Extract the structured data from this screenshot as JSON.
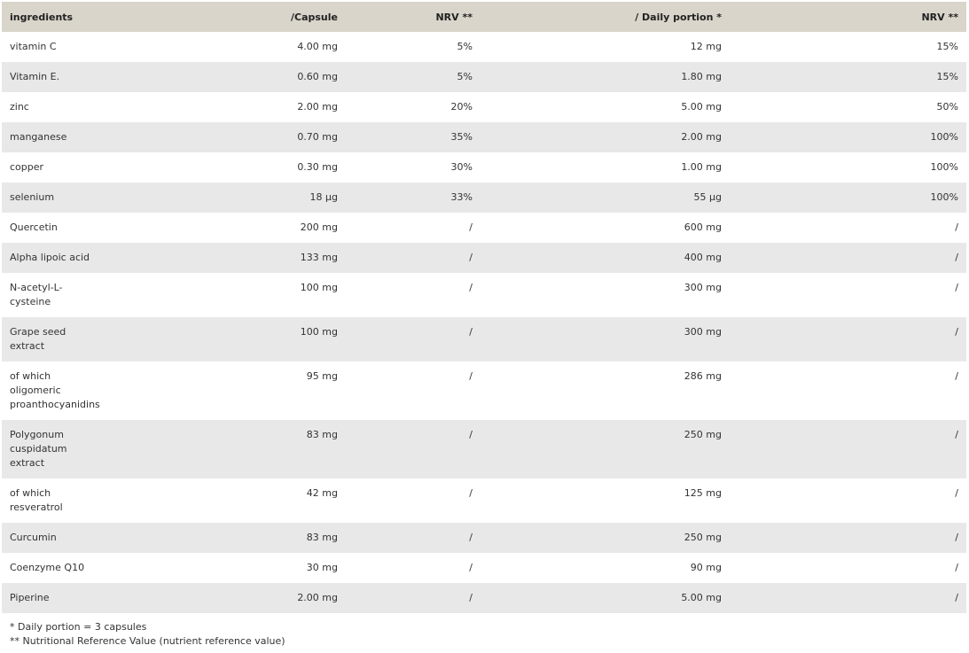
{
  "table": {
    "headers": [
      "ingredients",
      "/Capsule",
      "NRV **",
      "/ Daily portion *",
      "NRV **"
    ],
    "rows": [
      [
        "vitamin C",
        "4.00 mg",
        "5%",
        "12 mg",
        "15%"
      ],
      [
        "Vitamin E.",
        "0.60 mg",
        "5%",
        "1.80 mg",
        "15%"
      ],
      [
        "zinc",
        "2.00 mg",
        "20%",
        "5.00 mg",
        "50%"
      ],
      [
        "manganese",
        "0.70 mg",
        "35%",
        "2.00 mg",
        "100%"
      ],
      [
        "copper",
        "0.30 mg",
        "30%",
        "1.00 mg",
        "100%"
      ],
      [
        "selenium",
        "18 µg",
        "33%",
        "55 µg",
        "100%"
      ],
      [
        "Quercetin",
        "200 mg",
        "/",
        "600 mg",
        "/"
      ],
      [
        "Alpha lipoic acid",
        "133 mg",
        "/",
        "400 mg",
        "/"
      ],
      [
        "N-acetyl-L-cysteine",
        "100 mg",
        "/",
        "300 mg",
        "/"
      ],
      [
        "Grape seed extract",
        "100 mg",
        "/",
        "300 mg",
        "/"
      ],
      [
        "of which oligomeric proanthocyanidins",
        "95 mg",
        "/",
        "286 mg",
        "/"
      ],
      [
        "Polygonum cuspidatum extract",
        "83 mg",
        "/",
        "250 mg",
        "/"
      ],
      [
        "of which resveratrol",
        "42 mg",
        "/",
        "125 mg",
        "/"
      ],
      [
        "Curcumin",
        "83 mg",
        "/",
        "250 mg",
        "/"
      ],
      [
        "Coenzyme Q10",
        "30 mg",
        "/",
        "90 mg",
        "/"
      ],
      [
        "Piperine",
        "2.00 mg",
        "/",
        "5.00 mg",
        "/"
      ]
    ]
  },
  "notes": {
    "daily_portion": "* Daily portion = 3 capsules",
    "nrv": "** Nutritional Reference Value (nutrient reference value)"
  },
  "colors": {
    "header_bg": "#d9d5ca",
    "stripe_bg": "#e8e8e8"
  }
}
